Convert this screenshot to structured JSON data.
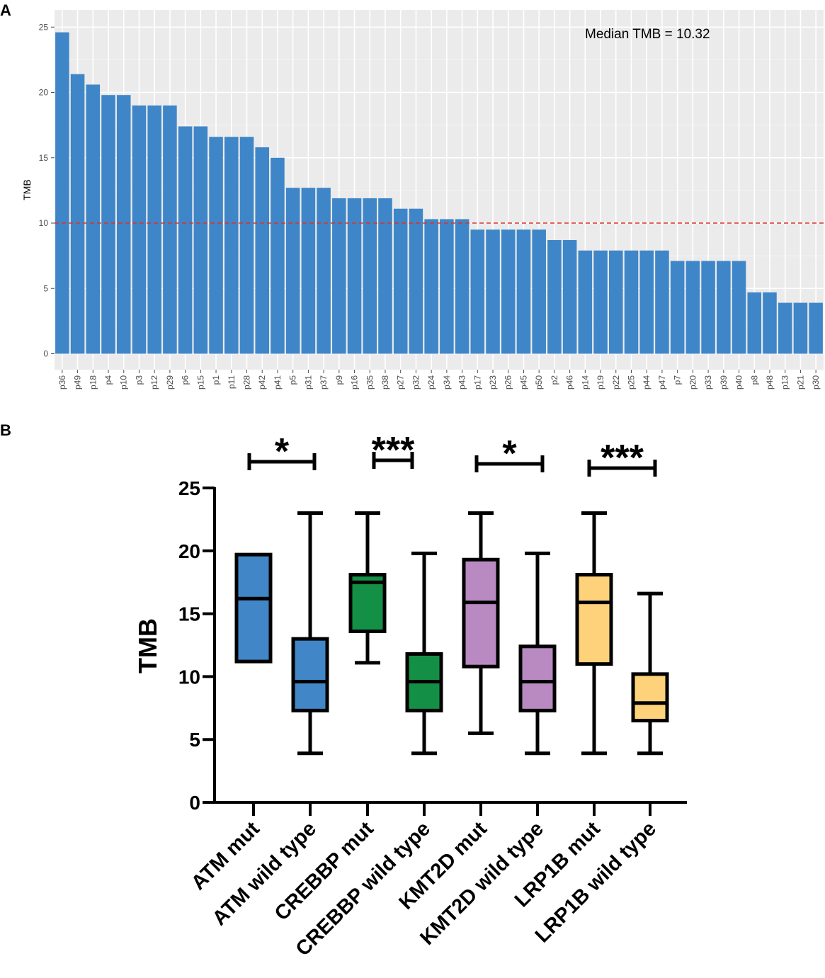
{
  "chart_data": [
    {
      "panel_label": "A",
      "type": "bar",
      "title": "",
      "xlabel": "",
      "ylabel": "TMB",
      "ylim": [
        0,
        26.2
      ],
      "yticks": [
        0,
        5,
        10,
        15,
        20,
        25
      ],
      "grid": true,
      "annotation": "Median TMB = 10.32",
      "reference_line": {
        "y": 10,
        "style": "dashed",
        "color": "#d9332b"
      },
      "bar_color": "#3f86c8",
      "panel_background": "#ebebeb",
      "categories": [
        "p36",
        "p49",
        "p18",
        "p4",
        "p10",
        "p3",
        "p12",
        "p29",
        "p6",
        "p15",
        "p1",
        "p11",
        "p28",
        "p42",
        "p41",
        "p5",
        "p31",
        "p37",
        "p9",
        "p16",
        "p35",
        "p38",
        "p27",
        "p32",
        "p24",
        "p34",
        "p43",
        "p17",
        "p23",
        "p26",
        "p45",
        "p50",
        "p2",
        "p46",
        "p14",
        "p19",
        "p22",
        "p25",
        "p44",
        "p47",
        "p7",
        "p20",
        "p33",
        "p39",
        "p40",
        "p8",
        "p48",
        "p13",
        "p21",
        "p30"
      ],
      "values": [
        24.6,
        21.4,
        20.6,
        19.8,
        19.8,
        19.0,
        19.0,
        19.0,
        17.4,
        17.4,
        16.6,
        16.6,
        16.6,
        15.8,
        15.0,
        12.7,
        12.7,
        12.7,
        11.9,
        11.9,
        11.9,
        11.9,
        11.1,
        11.1,
        10.3,
        10.3,
        10.3,
        9.5,
        9.5,
        9.5,
        9.5,
        9.5,
        8.7,
        8.7,
        7.9,
        7.9,
        7.9,
        7.9,
        7.9,
        7.9,
        7.1,
        7.1,
        7.1,
        7.1,
        7.1,
        4.7,
        4.7,
        3.9,
        3.9,
        3.9
      ]
    },
    {
      "panel_label": "B",
      "type": "box",
      "xlabel": "",
      "ylabel": "TMB",
      "ylim": [
        0,
        25
      ],
      "yticks": [
        0,
        5,
        10,
        15,
        20,
        25
      ],
      "categories": [
        "ATM mut",
        "ATM wild type",
        "CREBBP mut",
        "CREBBP wild type",
        "KMT2D mut",
        "KMT2D wild type",
        "LRP1B mut",
        "LRP1B wild type"
      ],
      "boxes": [
        {
          "min": null,
          "q1": 11.2,
          "median": 16.2,
          "q3": 19.7,
          "max": null,
          "color": "#4187c7"
        },
        {
          "min": 3.9,
          "q1": 7.3,
          "median": 9.6,
          "q3": 13.0,
          "max": 23.0,
          "color": "#4187c7"
        },
        {
          "min": 11.1,
          "q1": 13.6,
          "median": 17.5,
          "q3": 18.1,
          "max": 23.0,
          "color": "#149046"
        },
        {
          "min": 3.9,
          "q1": 7.3,
          "median": 9.6,
          "q3": 11.8,
          "max": 19.8,
          "color": "#149046"
        },
        {
          "min": 5.5,
          "q1": 10.8,
          "median": 15.9,
          "q3": 19.3,
          "max": 23.0,
          "color": "#b98ac2"
        },
        {
          "min": 3.9,
          "q1": 7.3,
          "median": 9.6,
          "q3": 12.4,
          "max": 19.8,
          "color": "#b98ac2"
        },
        {
          "min": 3.9,
          "q1": 11.0,
          "median": 15.9,
          "q3": 18.1,
          "max": 23.0,
          "color": "#fdd27a"
        },
        {
          "min": 3.9,
          "q1": 6.5,
          "median": 7.9,
          "q3": 10.2,
          "max": 16.6,
          "color": "#fdd27a"
        }
      ],
      "significance": [
        {
          "pair": [
            0,
            1
          ],
          "label": "*"
        },
        {
          "pair": [
            2,
            3
          ],
          "label": "***"
        },
        {
          "pair": [
            4,
            5
          ],
          "label": "*"
        },
        {
          "pair": [
            6,
            7
          ],
          "label": "***"
        }
      ]
    }
  ]
}
